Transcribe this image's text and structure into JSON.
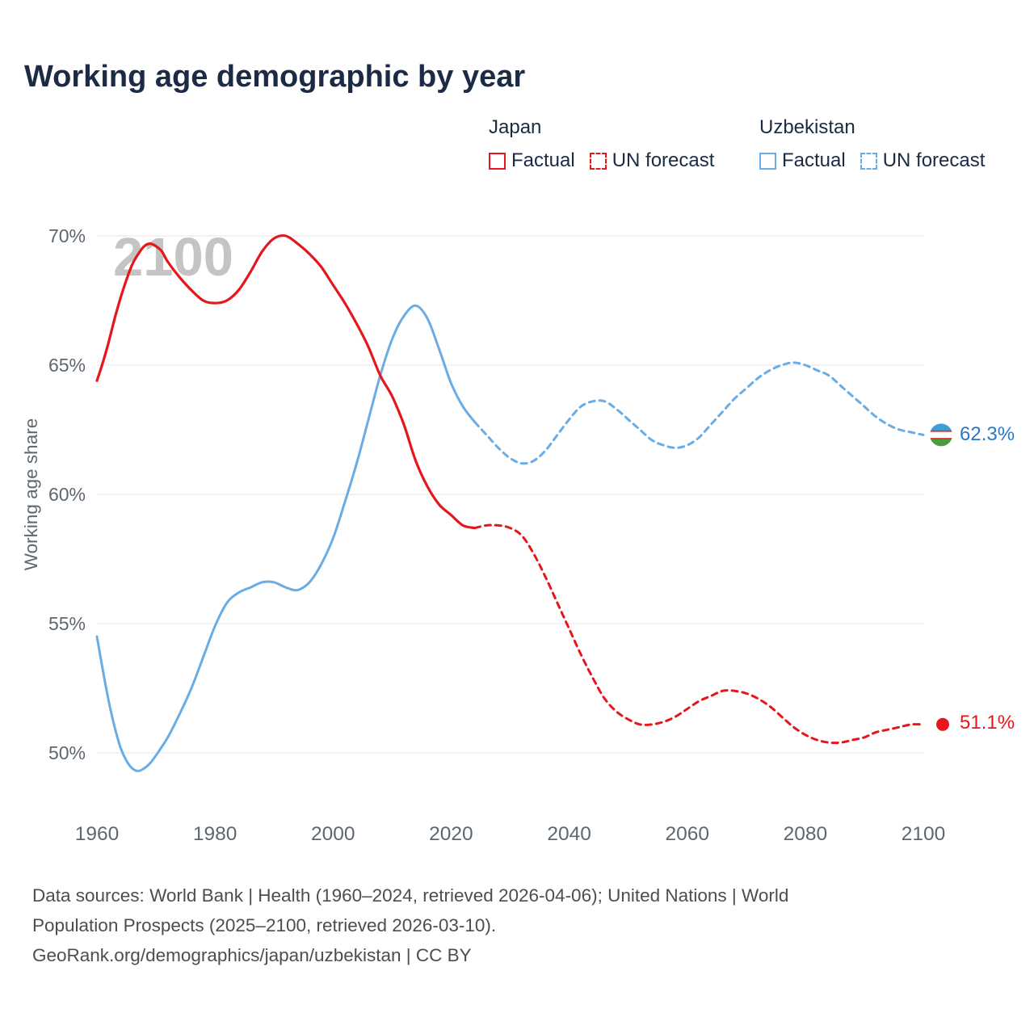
{
  "title": "Working age demographic by year",
  "watermark": "2100",
  "legend": {
    "japan": {
      "label": "Japan",
      "factual": "Factual",
      "forecast": "UN forecast"
    },
    "uzbekistan": {
      "label": "Uzbekistan",
      "factual": "Factual",
      "forecast": "UN forecast"
    }
  },
  "colors": {
    "japan": "#e5171c",
    "uzbekistan": "#6aace4",
    "japan_text": "#e5171c",
    "uzbekistan_text": "#2878c8",
    "title": "#1b2b45",
    "axis_text": "#5d6770",
    "grid": "#e9e9e9",
    "watermark": "#c4c4c4",
    "footer": "#4d4d4d",
    "flag_blue": "#3b9fd8",
    "flag_white": "#ffffff",
    "flag_green": "#4a9c3e",
    "flag_red": "#d63031"
  },
  "end_labels": {
    "uzbekistan": "62.3%",
    "japan": "51.1%"
  },
  "footer": {
    "lines": [
      "Data sources: World Bank | Health (1960–2024, retrieved 2026-04-06); United Nations | World",
      "Population Prospects (2025–2100, retrieved 2026-03-10).",
      "GeoRank.org/demographics/japan/uzbekistan | CC BY"
    ]
  },
  "chart_data": {
    "type": "line",
    "title": "Working age demographic by year",
    "ylabel": "Working age share",
    "x_range": [
      1960,
      2100
    ],
    "y_range": [
      50,
      70
    ],
    "x_ticks": [
      {
        "value": 1960,
        "label": "1960"
      },
      {
        "value": 1980,
        "label": "1980"
      },
      {
        "value": 2000,
        "label": "2000"
      },
      {
        "value": 2020,
        "label": "2020"
      },
      {
        "value": 2040,
        "label": "2040"
      },
      {
        "value": 2060,
        "label": "2060"
      },
      {
        "value": 2080,
        "label": "2080"
      },
      {
        "value": 2100,
        "label": "2100"
      }
    ],
    "y_ticks": [
      {
        "value": 70,
        "label": "70%"
      },
      {
        "value": 65,
        "label": "65%"
      },
      {
        "value": 60,
        "label": "60%"
      },
      {
        "value": 55,
        "label": "55%"
      },
      {
        "value": 50,
        "label": "50%"
      }
    ],
    "series": [
      {
        "id": "uzbekistan-factual",
        "name": "Uzbekistan Factual",
        "color": "#6aace4",
        "style": "solid",
        "width": 3,
        "points": [
          [
            1960,
            54.5
          ],
          [
            1961,
            53.2
          ],
          [
            1962,
            52.0
          ],
          [
            1963,
            51.0
          ],
          [
            1964,
            50.2
          ],
          [
            1965,
            49.7
          ],
          [
            1966,
            49.4
          ],
          [
            1967,
            49.3
          ],
          [
            1968,
            49.4
          ],
          [
            1969,
            49.6
          ],
          [
            1970,
            49.9
          ],
          [
            1972,
            50.6
          ],
          [
            1974,
            51.5
          ],
          [
            1976,
            52.5
          ],
          [
            1978,
            53.7
          ],
          [
            1980,
            54.9
          ],
          [
            1982,
            55.8
          ],
          [
            1984,
            56.2
          ],
          [
            1986,
            56.4
          ],
          [
            1988,
            56.6
          ],
          [
            1990,
            56.6
          ],
          [
            1992,
            56.4
          ],
          [
            1994,
            56.3
          ],
          [
            1996,
            56.6
          ],
          [
            1998,
            57.3
          ],
          [
            2000,
            58.3
          ],
          [
            2002,
            59.7
          ],
          [
            2004,
            61.2
          ],
          [
            2006,
            62.9
          ],
          [
            2008,
            64.6
          ],
          [
            2010,
            66.0
          ],
          [
            2012,
            66.9
          ],
          [
            2014,
            67.3
          ],
          [
            2016,
            66.8
          ],
          [
            2018,
            65.6
          ],
          [
            2020,
            64.3
          ],
          [
            2022,
            63.4
          ],
          [
            2024,
            62.8
          ]
        ]
      },
      {
        "id": "uzbekistan-forecast",
        "name": "Uzbekistan UN forecast",
        "color": "#6aace4",
        "style": "dashed",
        "width": 3,
        "points": [
          [
            2024,
            62.8
          ],
          [
            2026,
            62.3
          ],
          [
            2028,
            61.8
          ],
          [
            2030,
            61.4
          ],
          [
            2032,
            61.2
          ],
          [
            2034,
            61.3
          ],
          [
            2036,
            61.7
          ],
          [
            2038,
            62.3
          ],
          [
            2040,
            62.9
          ],
          [
            2042,
            63.4
          ],
          [
            2044,
            63.6
          ],
          [
            2046,
            63.6
          ],
          [
            2048,
            63.3
          ],
          [
            2050,
            62.9
          ],
          [
            2052,
            62.5
          ],
          [
            2054,
            62.1
          ],
          [
            2056,
            61.9
          ],
          [
            2058,
            61.8
          ],
          [
            2060,
            61.9
          ],
          [
            2062,
            62.2
          ],
          [
            2064,
            62.7
          ],
          [
            2066,
            63.2
          ],
          [
            2068,
            63.7
          ],
          [
            2070,
            64.1
          ],
          [
            2072,
            64.5
          ],
          [
            2074,
            64.8
          ],
          [
            2076,
            65.0
          ],
          [
            2078,
            65.1
          ],
          [
            2080,
            65.0
          ],
          [
            2082,
            64.8
          ],
          [
            2084,
            64.6
          ],
          [
            2086,
            64.2
          ],
          [
            2088,
            63.8
          ],
          [
            2090,
            63.4
          ],
          [
            2092,
            63.0
          ],
          [
            2094,
            62.7
          ],
          [
            2096,
            62.5
          ],
          [
            2098,
            62.4
          ],
          [
            2100,
            62.3
          ]
        ]
      },
      {
        "id": "japan-factual",
        "name": "Japan Factual",
        "color": "#e5171c",
        "style": "solid",
        "width": 3.2,
        "points": [
          [
            1960,
            64.4
          ],
          [
            1961,
            65.1
          ],
          [
            1962,
            65.9
          ],
          [
            1963,
            66.8
          ],
          [
            1964,
            67.6
          ],
          [
            1965,
            68.3
          ],
          [
            1966,
            68.9
          ],
          [
            1967,
            69.3
          ],
          [
            1968,
            69.6
          ],
          [
            1969,
            69.7
          ],
          [
            1970,
            69.6
          ],
          [
            1971,
            69.4
          ],
          [
            1972,
            69.0
          ],
          [
            1974,
            68.4
          ],
          [
            1976,
            67.9
          ],
          [
            1978,
            67.5
          ],
          [
            1980,
            67.4
          ],
          [
            1982,
            67.5
          ],
          [
            1984,
            67.9
          ],
          [
            1986,
            68.6
          ],
          [
            1988,
            69.4
          ],
          [
            1990,
            69.9
          ],
          [
            1992,
            70.0
          ],
          [
            1994,
            69.7
          ],
          [
            1996,
            69.3
          ],
          [
            1998,
            68.8
          ],
          [
            2000,
            68.1
          ],
          [
            2002,
            67.4
          ],
          [
            2004,
            66.6
          ],
          [
            2006,
            65.7
          ],
          [
            2008,
            64.6
          ],
          [
            2010,
            63.8
          ],
          [
            2012,
            62.7
          ],
          [
            2014,
            61.3
          ],
          [
            2016,
            60.3
          ],
          [
            2018,
            59.6
          ],
          [
            2020,
            59.2
          ],
          [
            2022,
            58.8
          ],
          [
            2024,
            58.7
          ]
        ]
      },
      {
        "id": "japan-forecast",
        "name": "Japan UN forecast",
        "color": "#e5171c",
        "style": "dashed",
        "width": 3,
        "points": [
          [
            2024,
            58.7
          ],
          [
            2026,
            58.8
          ],
          [
            2028,
            58.8
          ],
          [
            2030,
            58.7
          ],
          [
            2032,
            58.4
          ],
          [
            2034,
            57.7
          ],
          [
            2036,
            56.8
          ],
          [
            2038,
            55.8
          ],
          [
            2040,
            54.8
          ],
          [
            2042,
            53.8
          ],
          [
            2044,
            52.9
          ],
          [
            2046,
            52.1
          ],
          [
            2048,
            51.6
          ],
          [
            2050,
            51.3
          ],
          [
            2052,
            51.1
          ],
          [
            2054,
            51.1
          ],
          [
            2056,
            51.2
          ],
          [
            2058,
            51.4
          ],
          [
            2060,
            51.7
          ],
          [
            2062,
            52.0
          ],
          [
            2064,
            52.2
          ],
          [
            2066,
            52.4
          ],
          [
            2068,
            52.4
          ],
          [
            2070,
            52.3
          ],
          [
            2072,
            52.1
          ],
          [
            2074,
            51.8
          ],
          [
            2076,
            51.4
          ],
          [
            2078,
            51.0
          ],
          [
            2080,
            50.7
          ],
          [
            2082,
            50.5
          ],
          [
            2084,
            50.4
          ],
          [
            2086,
            50.4
          ],
          [
            2088,
            50.5
          ],
          [
            2090,
            50.6
          ],
          [
            2092,
            50.8
          ],
          [
            2094,
            50.9
          ],
          [
            2096,
            51.0
          ],
          [
            2098,
            51.1
          ],
          [
            2100,
            51.1
          ]
        ]
      }
    ],
    "end_markers": [
      {
        "series": "uzbekistan",
        "marker": "flag",
        "year": 2100,
        "value": 62.3
      },
      {
        "series": "japan",
        "marker": "dot",
        "year": 2100,
        "value": 51.1,
        "color": "#e5171c"
      }
    ],
    "grid": true,
    "legend_position": "top-right"
  }
}
